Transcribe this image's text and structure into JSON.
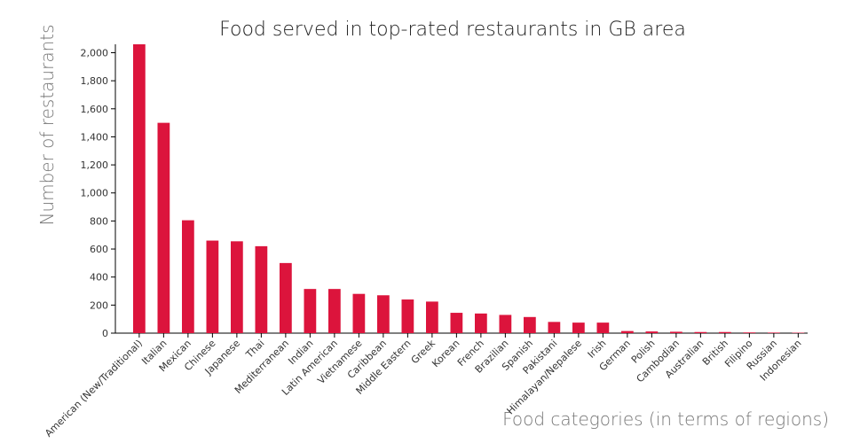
{
  "chart_data": {
    "type": "bar",
    "title": "Food served in top-rated restaurants in GB area",
    "xlabel": "Food categories (in terms of regions)",
    "ylabel": "Number of restaurants",
    "ylim": [
      0,
      2060
    ],
    "yticks": [
      0,
      200,
      400,
      600,
      800,
      1000,
      1200,
      1400,
      1600,
      1800,
      2000
    ],
    "ytick_labels": [
      "0",
      "200",
      "400",
      "600",
      "800",
      "1,000",
      "1,200",
      "1,400",
      "1,600",
      "1,800",
      "2,000"
    ],
    "grid": false,
    "bar_color": "#dc143c",
    "categories": [
      "American (New/Traditional)",
      "Italian",
      "Mexican",
      "Chinese",
      "Japanese",
      "Thai",
      "Mediterranean",
      "Indian",
      "Latin American",
      "Vietnamese",
      "Caribbean",
      "Middle Eastern",
      "Greek",
      "Korean",
      "French",
      "Brazilian",
      "Spanish",
      "Pakistani",
      "Himalayan/Nepalese",
      "Irish",
      "German",
      "Polish",
      "Cambodian",
      "Australian",
      "British",
      "Filipino",
      "Russian",
      "Indonesian"
    ],
    "values": [
      2060,
      1500,
      805,
      660,
      655,
      620,
      500,
      315,
      315,
      280,
      270,
      240,
      225,
      145,
      140,
      130,
      115,
      80,
      75,
      75,
      15,
      12,
      10,
      8,
      8,
      5,
      4,
      3
    ]
  }
}
